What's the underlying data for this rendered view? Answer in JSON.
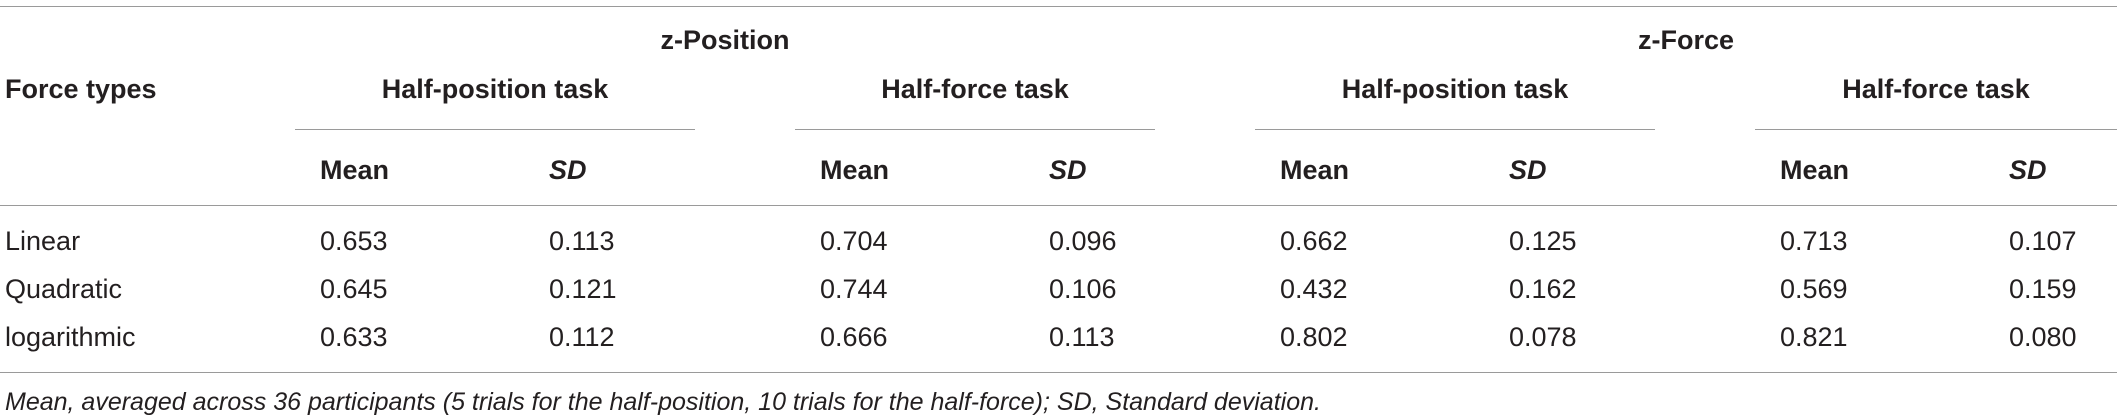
{
  "table": {
    "stub_header": "Force types",
    "groups": [
      {
        "label": "z-Position",
        "tasks": [
          {
            "label": "Half-position task",
            "mean_label": "Mean",
            "sd_label": "SD"
          },
          {
            "label": "Half-force task",
            "mean_label": "Mean",
            "sd_label": "SD"
          }
        ]
      },
      {
        "label": "z-Force",
        "tasks": [
          {
            "label": "Half-position task",
            "mean_label": "Mean",
            "sd_label": "SD"
          },
          {
            "label": "Half-force task",
            "mean_label": "Mean",
            "sd_label": "SD"
          }
        ]
      }
    ],
    "rows": [
      {
        "label": "Linear",
        "values": [
          "0.653",
          "0.113",
          "0.704",
          "0.096",
          "0.662",
          "0.125",
          "0.713",
          "0.107"
        ]
      },
      {
        "label": "Quadratic",
        "values": [
          "0.645",
          "0.121",
          "0.744",
          "0.106",
          "0.432",
          "0.162",
          "0.569",
          "0.159"
        ]
      },
      {
        "label": "logarithmic",
        "values": [
          "0.633",
          "0.112",
          "0.666",
          "0.113",
          "0.802",
          "0.078",
          "0.821",
          "0.080"
        ]
      }
    ],
    "footnote": "Mean, averaged across 36 participants (5 trials for the half-position, 10 trials for the half-force); SD, Standard deviation."
  }
}
